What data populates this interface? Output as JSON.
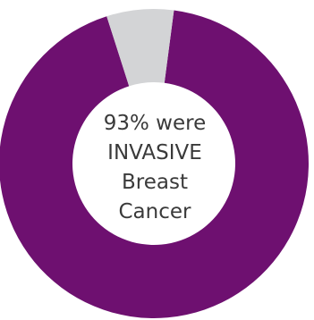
{
  "chart_data": {
    "type": "pie",
    "variant": "donut",
    "slices": [
      {
        "value": 93,
        "color": "#6e1070"
      },
      {
        "value": 7,
        "color": "#d3d4d6"
      }
    ],
    "center_text": [
      "93% were",
      "INVASIVE",
      "Breast",
      "Cancer"
    ],
    "legend": false,
    "grid": false
  }
}
